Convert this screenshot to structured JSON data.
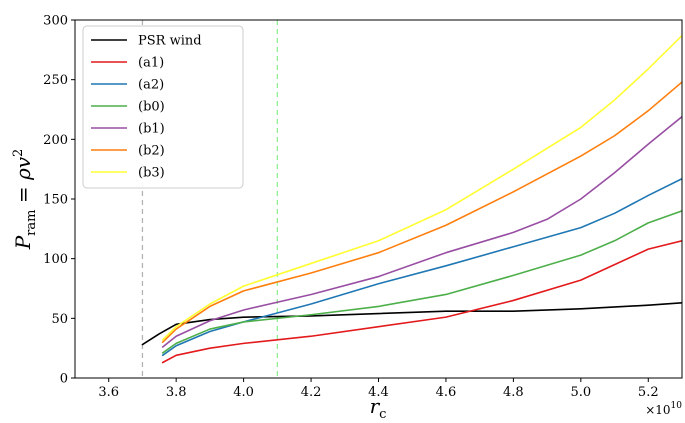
{
  "chart_data": {
    "type": "line",
    "xlabel": "r_c",
    "ylabel": "P_ram = ρv^2",
    "x_offset_label": "×10^10",
    "xlim": [
      3.5,
      5.3
    ],
    "ylim": [
      0,
      300
    ],
    "x_ticks": [
      3.6,
      3.8,
      4.0,
      4.2,
      4.4,
      4.6,
      4.8,
      5.0,
      5.2
    ],
    "x_tick_labels": [
      "3.6",
      "3.8",
      "4.0",
      "4.2",
      "4.4",
      "4.6",
      "4.8",
      "5.0",
      "5.2"
    ],
    "y_ticks": [
      0,
      50,
      100,
      150,
      200,
      250,
      300
    ],
    "y_tick_labels": [
      "0",
      "50",
      "100",
      "150",
      "200",
      "250",
      "300"
    ],
    "legend_position": "upper-left",
    "vlines": [
      {
        "x": 3.7,
        "color": "#b3b3b3",
        "style": "dashed"
      },
      {
        "x": 4.1,
        "color": "#90ee90",
        "style": "dashed"
      }
    ],
    "series": [
      {
        "name": "PSR wind",
        "color": "#000000",
        "x": [
          3.7,
          3.75,
          3.8,
          3.9,
          4.0,
          4.2,
          4.4,
          4.6,
          4.8,
          5.0,
          5.2,
          5.3
        ],
        "y": [
          28,
          37,
          45,
          49,
          51,
          52,
          54,
          56,
          56,
          58,
          61,
          63
        ]
      },
      {
        "name": "(a1)",
        "color": "#e31a1c",
        "x": [
          3.76,
          3.8,
          3.9,
          4.0,
          4.2,
          4.4,
          4.6,
          4.8,
          5.0,
          5.1,
          5.2,
          5.3
        ],
        "y": [
          13,
          19,
          25,
          29,
          35,
          43,
          51,
          65,
          82,
          95,
          108,
          115
        ]
      },
      {
        "name": "(a2)",
        "color": "#1f77b4",
        "x": [
          3.76,
          3.8,
          3.9,
          4.0,
          4.2,
          4.4,
          4.6,
          4.8,
          5.0,
          5.1,
          5.2,
          5.3
        ],
        "y": [
          19,
          27,
          39,
          47,
          62,
          79,
          94,
          110,
          126,
          138,
          153,
          167
        ]
      },
      {
        "name": "(b0)",
        "color": "#4daf4a",
        "x": [
          3.76,
          3.8,
          3.9,
          4.0,
          4.2,
          4.4,
          4.6,
          4.8,
          5.0,
          5.1,
          5.2,
          5.3
        ],
        "y": [
          21,
          29,
          41,
          47,
          53,
          60,
          70,
          86,
          103,
          115,
          130,
          140
        ]
      },
      {
        "name": "(b1)",
        "color": "#984ea3",
        "x": [
          3.76,
          3.8,
          3.9,
          4.0,
          4.2,
          4.4,
          4.6,
          4.8,
          4.9,
          5.0,
          5.1,
          5.2,
          5.3
        ],
        "y": [
          26,
          35,
          48,
          57,
          70,
          85,
          105,
          122,
          133,
          150,
          172,
          196,
          219
        ]
      },
      {
        "name": "(b2)",
        "color": "#ff7f0e",
        "x": [
          3.76,
          3.8,
          3.9,
          4.0,
          4.2,
          4.4,
          4.6,
          4.8,
          5.0,
          5.1,
          5.2,
          5.3
        ],
        "y": [
          30,
          41,
          60,
          73,
          88,
          105,
          128,
          156,
          186,
          203,
          224,
          248
        ]
      },
      {
        "name": "(b3)",
        "color": "#ffff33",
        "x": [
          3.76,
          3.8,
          3.9,
          4.0,
          4.2,
          4.4,
          4.6,
          4.8,
          5.0,
          5.1,
          5.2,
          5.3
        ],
        "y": [
          32,
          43,
          62,
          77,
          96,
          115,
          141,
          175,
          210,
          233,
          259,
          287
        ]
      }
    ]
  }
}
